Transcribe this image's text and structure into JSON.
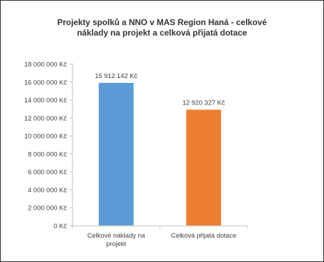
{
  "chart_data": {
    "type": "bar",
    "title": "Projekty spolků a NNO v MAS Region Haná - celkové náklady na projekt a celková přijatá dotace",
    "title_lines": [
      "Projekty spolků a NNO v MAS Region Haná - celkové",
      "náklady na projekt a celková přijatá dotace"
    ],
    "categories": [
      "Celkové náklady na projekt",
      "Celková přijatá dotace"
    ],
    "category_lines": [
      [
        "Celkové náklady na",
        "projekt"
      ],
      [
        "Celková přijatá dotace"
      ]
    ],
    "values": [
      15912142,
      12920327
    ],
    "data_labels": [
      "15 912 142 Kč",
      "12 920 327 Kč"
    ],
    "colors": [
      "#5b9bd5",
      "#ed7d31"
    ],
    "ylim": [
      0,
      18000000
    ],
    "y_ticks": [
      0,
      2000000,
      4000000,
      6000000,
      8000000,
      10000000,
      12000000,
      14000000,
      16000000,
      18000000
    ],
    "y_tick_labels": [
      "0 Kč",
      "2 000 000 Kč",
      "4 000 000 Kč",
      "6 000 000 Kč",
      "8 000 000 Kč",
      "10 000 000 Kč",
      "12 000 000 Kč",
      "14 000 000 Kč",
      "16 000 000 Kč",
      "18 000 000 Kč"
    ],
    "xlabel": "",
    "ylabel": "",
    "grid": false,
    "legend": "none"
  }
}
